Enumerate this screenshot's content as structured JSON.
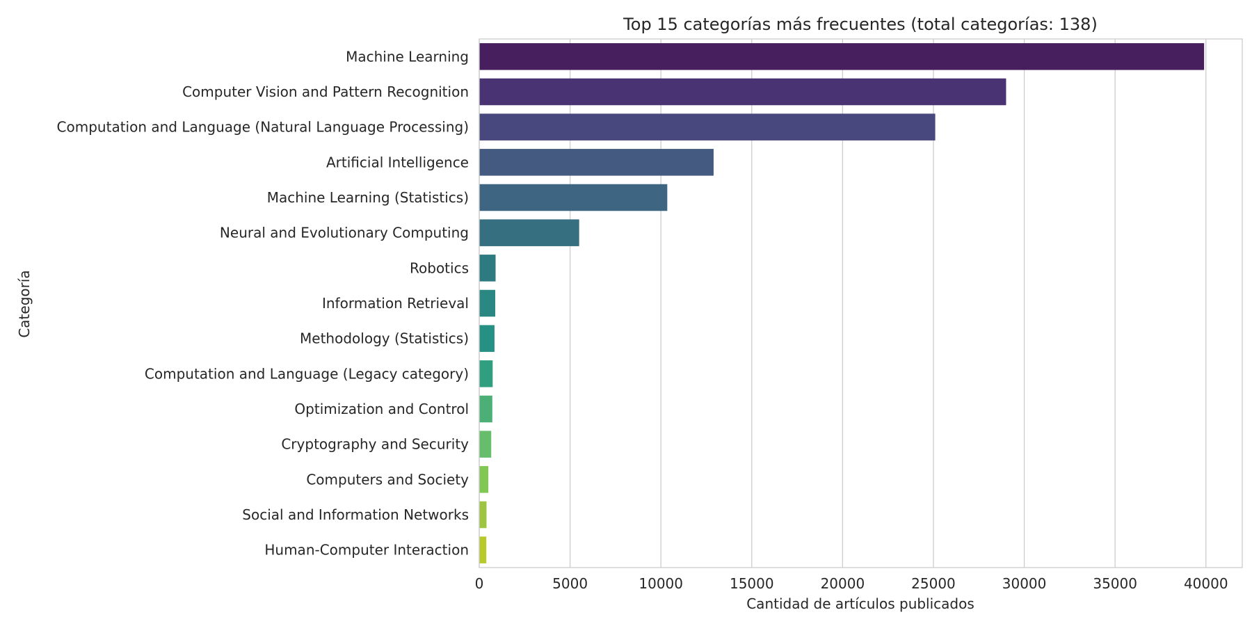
{
  "chart_data": {
    "type": "bar",
    "orientation": "horizontal",
    "title": "Top 15 categorías más frecuentes (total categorías: 138)",
    "xlabel": "Cantidad de artículos publicados",
    "ylabel": "Categoría",
    "xlim": [
      0,
      42000
    ],
    "xticks": [
      0,
      5000,
      10000,
      15000,
      20000,
      25000,
      30000,
      35000,
      40000
    ],
    "grid": "x",
    "categories": [
      "Machine Learning",
      "Computer Vision and Pattern Recognition",
      "Computation and Language (Natural Language Processing)",
      "Artificial Intelligence",
      "Machine Learning (Statistics)",
      "Neural and Evolutionary Computing",
      "Robotics",
      "Information Retrieval",
      "Methodology (Statistics)",
      "Computation and Language (Legacy category)",
      "Optimization and Control",
      "Cryptography and Security",
      "Computers and Society",
      "Social and Information Networks",
      "Human-Computer Interaction"
    ],
    "values": [
      39900,
      29000,
      25100,
      12900,
      10350,
      5500,
      900,
      880,
      840,
      740,
      720,
      660,
      500,
      400,
      390
    ],
    "colors": [
      "#471e5e",
      "#4a3372",
      "#48477e",
      "#445a80",
      "#3e6582",
      "#356f80",
      "#2e7a81",
      "#2a8781",
      "#259083",
      "#2f9f7f",
      "#4baf76",
      "#66be6c",
      "#82c653",
      "#9dc53f",
      "#b8c92c"
    ]
  }
}
